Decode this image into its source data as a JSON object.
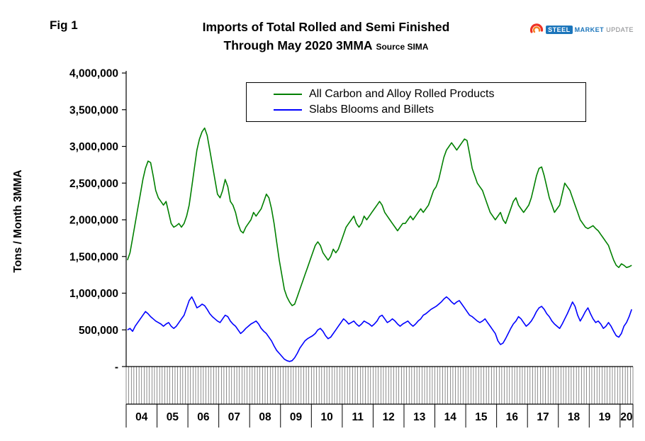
{
  "header": {
    "fig_label": "Fig 1",
    "title_line1": "Imports of Total Rolled and Semi Finished",
    "title_line2": "Through May 2020 3MMA",
    "source": "Source SIMA"
  },
  "logo": {
    "word1": "STEEL",
    "word2": "MARKET",
    "word3": "UPDATE"
  },
  "chart_data": {
    "type": "line",
    "title": "Imports of Total Rolled and Semi Finished Through May 2020 3MMA",
    "xlabel": "",
    "ylabel": "Tons / Month 3MMA",
    "ylim": [
      0,
      4000000
    ],
    "y_tick_step": 500000,
    "y_tick_labels": [
      "-",
      "500,000",
      "1,000,000",
      "1,500,000",
      "2,000,000",
      "2,500,000",
      "3,000,000",
      "3,500,000",
      "4,000,000"
    ],
    "x_monthly_start": "2004-01",
    "x_monthly_end": "2020-05",
    "year_labels": [
      "04",
      "05",
      "06",
      "07",
      "08",
      "09",
      "10",
      "11",
      "12",
      "13",
      "14",
      "15",
      "16",
      "17",
      "18",
      "19",
      "20"
    ],
    "grid": false,
    "legend_position": "top-center",
    "series": [
      {
        "name": "All Carbon and Alloy Rolled Products",
        "color": "#008000",
        "values": [
          1450000,
          1550000,
          1750000,
          1950000,
          2150000,
          2350000,
          2550000,
          2700000,
          2800000,
          2780000,
          2600000,
          2400000,
          2300000,
          2250000,
          2200000,
          2250000,
          2100000,
          1950000,
          1900000,
          1920000,
          1950000,
          1900000,
          1950000,
          2050000,
          2200000,
          2450000,
          2700000,
          2950000,
          3100000,
          3200000,
          3250000,
          3150000,
          2950000,
          2750000,
          2550000,
          2350000,
          2300000,
          2400000,
          2550000,
          2450000,
          2250000,
          2200000,
          2100000,
          1950000,
          1850000,
          1820000,
          1900000,
          1950000,
          2000000,
          2100000,
          2050000,
          2100000,
          2150000,
          2250000,
          2350000,
          2300000,
          2150000,
          1950000,
          1700000,
          1450000,
          1250000,
          1050000,
          950000,
          880000,
          830000,
          850000,
          950000,
          1050000,
          1150000,
          1250000,
          1350000,
          1450000,
          1550000,
          1650000,
          1700000,
          1650000,
          1550000,
          1500000,
          1450000,
          1500000,
          1600000,
          1550000,
          1600000,
          1700000,
          1800000,
          1900000,
          1950000,
          2000000,
          2050000,
          1950000,
          1900000,
          1950000,
          2050000,
          2000000,
          2050000,
          2100000,
          2150000,
          2200000,
          2250000,
          2200000,
          2100000,
          2050000,
          2000000,
          1950000,
          1900000,
          1850000,
          1900000,
          1950000,
          1950000,
          2000000,
          2050000,
          2000000,
          2050000,
          2100000,
          2150000,
          2100000,
          2150000,
          2200000,
          2300000,
          2400000,
          2450000,
          2550000,
          2700000,
          2850000,
          2950000,
          3000000,
          3050000,
          3000000,
          2950000,
          3000000,
          3050000,
          3100000,
          3080000,
          2900000,
          2700000,
          2600000,
          2500000,
          2450000,
          2400000,
          2300000,
          2200000,
          2100000,
          2050000,
          2000000,
          2050000,
          2100000,
          2000000,
          1950000,
          2050000,
          2150000,
          2250000,
          2300000,
          2200000,
          2150000,
          2100000,
          2150000,
          2200000,
          2300000,
          2450000,
          2600000,
          2700000,
          2720000,
          2600000,
          2450000,
          2300000,
          2200000,
          2100000,
          2150000,
          2200000,
          2350000,
          2500000,
          2450000,
          2400000,
          2300000,
          2200000,
          2100000,
          2000000,
          1950000,
          1900000,
          1880000,
          1900000,
          1920000,
          1880000,
          1850000,
          1800000,
          1750000,
          1700000,
          1650000,
          1550000,
          1450000,
          1380000,
          1350000,
          1400000,
          1380000,
          1350000,
          1360000,
          1380000
        ]
      },
      {
        "name": "Slabs Blooms and Billets",
        "color": "#0000ff",
        "values": [
          500000,
          520000,
          480000,
          550000,
          600000,
          650000,
          700000,
          750000,
          720000,
          680000,
          650000,
          620000,
          600000,
          580000,
          550000,
          580000,
          600000,
          550000,
          520000,
          550000,
          600000,
          650000,
          700000,
          800000,
          900000,
          950000,
          880000,
          800000,
          820000,
          850000,
          830000,
          780000,
          720000,
          680000,
          650000,
          620000,
          600000,
          650000,
          700000,
          680000,
          620000,
          580000,
          550000,
          500000,
          450000,
          480000,
          520000,
          550000,
          580000,
          600000,
          620000,
          580000,
          520000,
          480000,
          450000,
          400000,
          350000,
          280000,
          220000,
          180000,
          140000,
          100000,
          80000,
          70000,
          80000,
          120000,
          180000,
          250000,
          300000,
          350000,
          380000,
          400000,
          420000,
          450000,
          500000,
          520000,
          480000,
          420000,
          380000,
          400000,
          450000,
          500000,
          550000,
          600000,
          650000,
          620000,
          580000,
          600000,
          620000,
          580000,
          550000,
          580000,
          620000,
          600000,
          580000,
          550000,
          580000,
          620000,
          680000,
          700000,
          650000,
          600000,
          620000,
          650000,
          620000,
          580000,
          550000,
          580000,
          600000,
          620000,
          580000,
          550000,
          580000,
          620000,
          650000,
          700000,
          720000,
          750000,
          780000,
          800000,
          820000,
          850000,
          880000,
          920000,
          950000,
          920000,
          880000,
          850000,
          880000,
          900000,
          850000,
          800000,
          750000,
          700000,
          680000,
          650000,
          620000,
          600000,
          620000,
          650000,
          600000,
          550000,
          500000,
          450000,
          350000,
          300000,
          320000,
          380000,
          450000,
          520000,
          580000,
          620000,
          680000,
          650000,
          600000,
          550000,
          580000,
          620000,
          680000,
          750000,
          800000,
          820000,
          780000,
          720000,
          680000,
          620000,
          580000,
          550000,
          520000,
          580000,
          650000,
          720000,
          800000,
          880000,
          820000,
          700000,
          620000,
          680000,
          750000,
          800000,
          720000,
          650000,
          600000,
          620000,
          580000,
          520000,
          550000,
          600000,
          550000,
          480000,
          420000,
          400000,
          450000,
          550000,
          600000,
          680000,
          780000
        ]
      }
    ]
  }
}
